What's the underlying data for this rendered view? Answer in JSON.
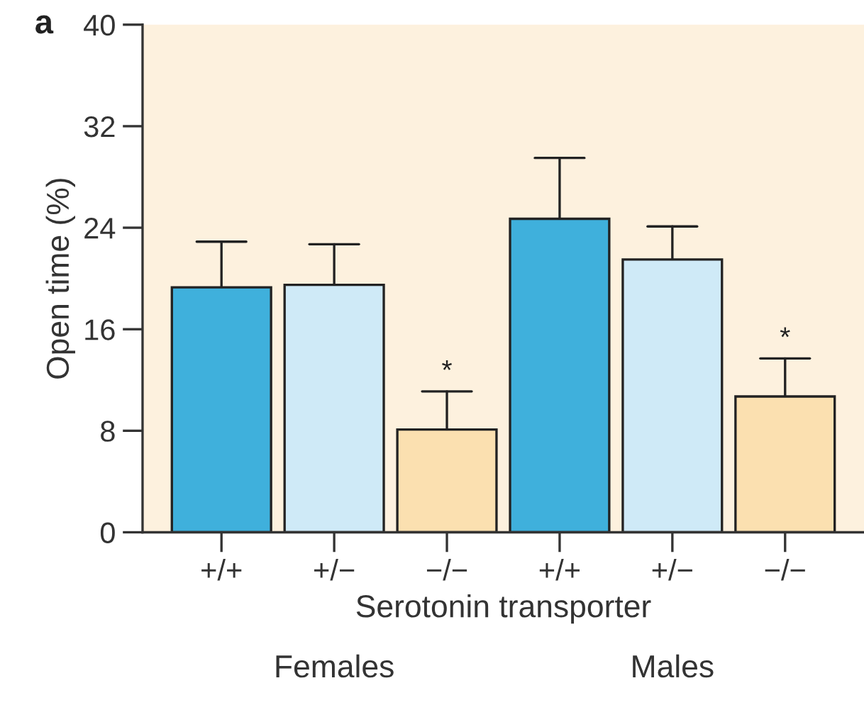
{
  "chart_data": {
    "type": "bar",
    "ylabel": "Open time (%)",
    "xlabel": "Serotonin transporter",
    "categories": [
      "+/+",
      "+/−",
      "−/−",
      "+/+",
      "+/−",
      "−/−"
    ],
    "values": [
      19.3,
      19.5,
      8.1,
      24.7,
      21.5,
      10.7
    ],
    "colors": [
      "#3fb0dc",
      "#cfeaf7",
      "#fbe0b0",
      "#3fb0dc",
      "#cfeaf7",
      "#fbe0b0"
    ],
    "errors": [
      [
        19.3,
        22.9
      ],
      [
        19.5,
        22.7
      ],
      [
        8.1,
        11.1
      ],
      [
        24.7,
        29.5
      ],
      [
        21.5,
        24.1
      ],
      [
        10.7,
        13.7
      ]
    ],
    "value_labels": [
      null,
      null,
      "*",
      null,
      null,
      "*"
    ],
    "ylim": [
      0,
      40
    ],
    "yticks": [
      0,
      8,
      16,
      24,
      32,
      40
    ],
    "annotations": [
      "a",
      "Females",
      "Males"
    ],
    "grid": false,
    "legend": false
  }
}
